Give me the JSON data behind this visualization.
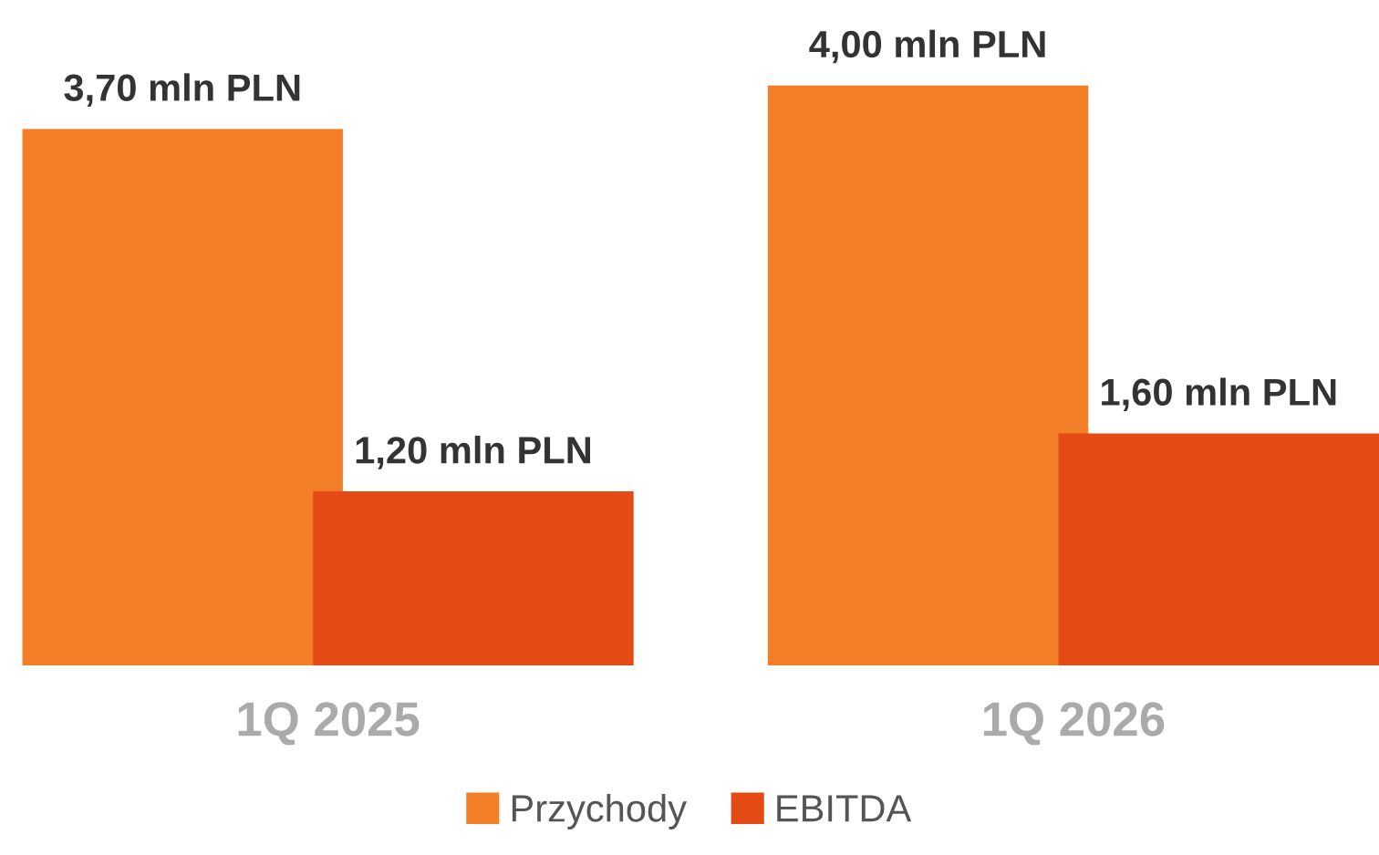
{
  "chart_data": {
    "type": "bar",
    "categories": [
      "1Q 2025",
      "1Q 2026"
    ],
    "series": [
      {
        "name": "Przychody",
        "color": "#f27f27",
        "values": [
          3.7,
          4.0
        ],
        "value_labels": [
          "3,70 mln PLN",
          "4,00 mln PLN"
        ]
      },
      {
        "name": "EBITDA",
        "color": "#e34a14",
        "values": [
          1.2,
          1.6
        ],
        "value_labels": [
          "1,20 mln PLN",
          "1,60 mln PLN"
        ]
      }
    ],
    "tick_labels": "x",
    "grid": false,
    "legend": "bottom"
  }
}
